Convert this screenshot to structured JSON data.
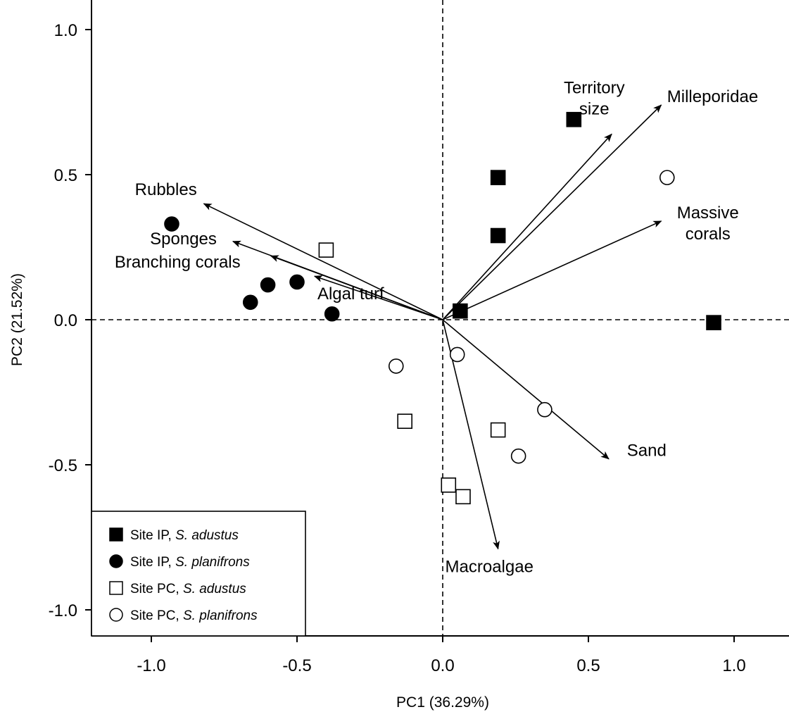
{
  "chart_data": {
    "type": "scatter",
    "xlabel": "PC1 (36.29%)",
    "ylabel": "PC2 (21.52%)",
    "xlim": [
      -1.2,
      1.2
    ],
    "ylim": [
      -1.1,
      1.1
    ],
    "x_ticks": [
      -1.0,
      -0.5,
      0.0,
      0.5,
      1.0
    ],
    "y_ticks": [
      -1.0,
      -0.5,
      0.0,
      0.5,
      1.0
    ],
    "x_tick_labels": [
      "-1.0",
      "-0.5",
      "0.0",
      "0.5",
      "1.0"
    ],
    "y_tick_labels": [
      "-1.0",
      "-0.5",
      "0.0",
      "0.5",
      "1.0"
    ],
    "reference_lines": {
      "x": 0,
      "y": 0,
      "style": "dashed"
    },
    "grid": false,
    "legend_position": "bottom-left",
    "series": [
      {
        "name_main": "Site IP, ",
        "name_italic": "S. adustus",
        "marker": "square",
        "filled": true,
        "points": [
          [
            0.45,
            0.69
          ],
          [
            0.19,
            0.49
          ],
          [
            0.19,
            0.29
          ],
          [
            0.06,
            0.03
          ],
          [
            0.93,
            -0.01
          ]
        ]
      },
      {
        "name_main": "Site IP, ",
        "name_italic": "S. planifrons",
        "marker": "circle",
        "filled": true,
        "points": [
          [
            -0.93,
            0.33
          ],
          [
            -0.6,
            0.12
          ],
          [
            -0.5,
            0.13
          ],
          [
            -0.66,
            0.06
          ],
          [
            -0.38,
            0.02
          ]
        ]
      },
      {
        "name_main": "Site PC, ",
        "name_italic": "S. adustus",
        "marker": "square",
        "filled": false,
        "points": [
          [
            -0.4,
            0.24
          ],
          [
            -0.13,
            -0.35
          ],
          [
            0.19,
            -0.38
          ],
          [
            0.02,
            -0.57
          ],
          [
            0.07,
            -0.61
          ]
        ]
      },
      {
        "name_main": "Site PC, ",
        "name_italic": "S. planifrons",
        "marker": "circle",
        "filled": false,
        "points": [
          [
            0.77,
            0.49
          ],
          [
            -0.16,
            -0.16
          ],
          [
            0.05,
            -0.12
          ],
          [
            0.35,
            -0.31
          ],
          [
            0.26,
            -0.47
          ]
        ]
      }
    ],
    "vectors": [
      {
        "label": "Rubbles",
        "x": -0.82,
        "y": 0.4,
        "label_pos": [
          -0.95,
          0.43
        ],
        "anchor": "middle"
      },
      {
        "label": "Sponges",
        "x": -0.72,
        "y": 0.27,
        "label_pos": [
          -0.89,
          0.26
        ],
        "anchor": "middle"
      },
      {
        "label": "Branching corals",
        "x": -0.59,
        "y": 0.22,
        "label_pos": [
          -0.91,
          0.18
        ],
        "anchor": "middle"
      },
      {
        "label": "Algal turf",
        "x": -0.44,
        "y": 0.15,
        "label_pos": [
          -0.43,
          0.07
        ],
        "anchor": "start"
      },
      {
        "label": "Territory size",
        "label_lines": [
          "Territory",
          "size"
        ],
        "x": 0.58,
        "y": 0.64,
        "label_pos": [
          0.52,
          0.78
        ],
        "anchor": "middle"
      },
      {
        "label": "Milleporidae",
        "x": 0.75,
        "y": 0.74,
        "label_pos": [
          0.77,
          0.75
        ],
        "anchor": "start"
      },
      {
        "label": "Massive corals",
        "label_lines": [
          "Massive",
          "corals"
        ],
        "x": 0.75,
        "y": 0.34,
        "label_pos": [
          0.91,
          0.35
        ],
        "anchor": "middle"
      },
      {
        "label": "Sand",
        "x": 0.57,
        "y": -0.48,
        "label_pos": [
          0.7,
          -0.47
        ],
        "anchor": "middle"
      },
      {
        "label": "Macroalgae",
        "x": 0.19,
        "y": -0.79,
        "label_pos": [
          0.16,
          -0.87
        ],
        "anchor": "middle"
      }
    ]
  }
}
